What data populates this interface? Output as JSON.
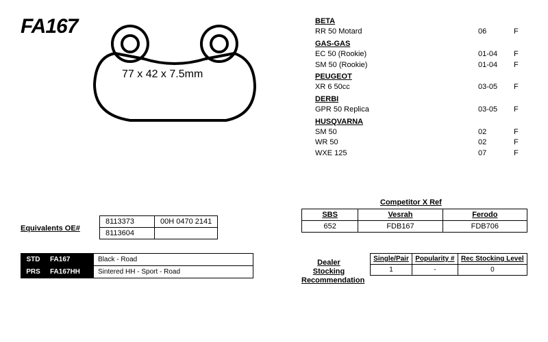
{
  "partNumber": "FA167",
  "dimensions": "77 x 42 x 7.5mm",
  "fitments": [
    {
      "brand": "BETA",
      "models": [
        {
          "name": "RR 50 Motard",
          "yr": "06",
          "pos": "F"
        }
      ]
    },
    {
      "brand": "GAS-GAS",
      "models": [
        {
          "name": "EC 50 (Rookie)",
          "yr": "01-04",
          "pos": "F"
        },
        {
          "name": "SM 50 (Rookie)",
          "yr": "01-04",
          "pos": "F"
        }
      ]
    },
    {
      "brand": "PEUGEOT",
      "models": [
        {
          "name": "XR 6 50cc",
          "yr": "03-05",
          "pos": "F"
        }
      ]
    },
    {
      "brand": "DERBI",
      "models": [
        {
          "name": "GPR 50 Replica",
          "yr": "03-05",
          "pos": "F"
        }
      ]
    },
    {
      "brand": "HUSQVARNA",
      "models": [
        {
          "name": "SM 50",
          "yr": "02",
          "pos": "F"
        },
        {
          "name": "WR 50",
          "yr": "02",
          "pos": "F"
        },
        {
          "name": "WXE 125",
          "yr": "07",
          "pos": "F"
        }
      ]
    }
  ],
  "equivalents": {
    "label": "Equivalents OE#",
    "rows": [
      [
        "8113373",
        "00H 0470 2141"
      ],
      [
        "8113604",
        ""
      ]
    ]
  },
  "variants": [
    {
      "code": "STD",
      "pn": "FA167",
      "desc": "Black - Road"
    },
    {
      "code": "PRS",
      "pn": "FA167HH",
      "desc": "Sintered HH - Sport - Road"
    }
  ],
  "xref": {
    "title": "Competitor X Ref",
    "cols": [
      "SBS",
      "Vesrah",
      "Ferodo"
    ],
    "vals": [
      "652",
      "FDB167",
      "FDB706"
    ]
  },
  "dealer": {
    "label": "Dealer Stocking Recommendation",
    "cols": [
      "Single/Pair",
      "Popularity #",
      "Rec Stocking Level"
    ],
    "vals": [
      "1",
      "-",
      "0"
    ]
  },
  "style": {
    "strokeColor": "#000000",
    "bgColor": "#ffffff"
  }
}
